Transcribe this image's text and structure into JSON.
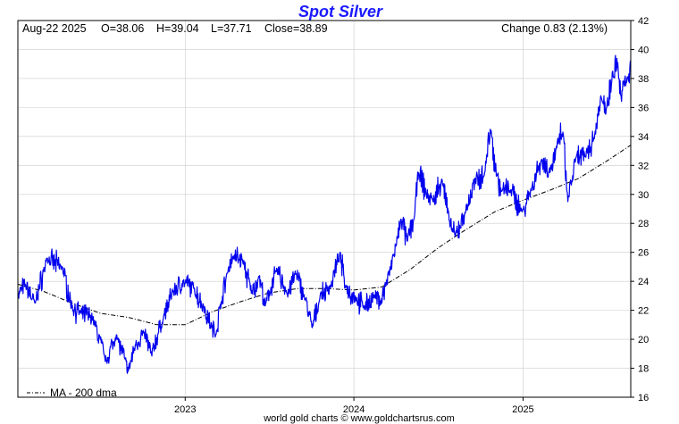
{
  "chart_data": {
    "type": "line",
    "title": "Spot Silver",
    "header": {
      "date": "Aug-22  2025",
      "open": "O=38.06",
      "high": "H=39.04",
      "low": "L=37.71",
      "close": "Close=38.89",
      "change": "Change 0.83 (2.13%)"
    },
    "ylim": [
      16,
      42
    ],
    "y_ticks": [
      "16",
      "18",
      "20",
      "22",
      "24",
      "26",
      "28",
      "30",
      "32",
      "34",
      "36",
      "38",
      "40",
      "42"
    ],
    "x_ticks": [
      {
        "label": "2023",
        "date": "2023-01-01"
      },
      {
        "label": "2024",
        "date": "2024-01-01"
      },
      {
        "label": "2025",
        "date": "2025-01-01"
      }
    ],
    "x_range": [
      "2022-01-04",
      "2025-08-22"
    ],
    "grid": true,
    "legend_text": "MA - 200 dma",
    "legend_position": "bottom-left",
    "footer": "world gold charts © www.goldchartsrus.com",
    "colors": {
      "price": "#0000ee",
      "ma": "#000000",
      "title": "#1a1aff",
      "grid": "#cccccc"
    },
    "series": [
      {
        "name": "Spot Silver",
        "style": "solid",
        "x": [
          "2022-01-04",
          "2022-01-20",
          "2022-02-10",
          "2022-03-08",
          "2022-04-10",
          "2022-05-01",
          "2022-05-20",
          "2022-06-15",
          "2022-07-14",
          "2022-08-05",
          "2022-08-31",
          "2022-09-15",
          "2022-10-04",
          "2022-10-20",
          "2022-11-15",
          "2022-12-05",
          "2022-12-28",
          "2023-01-20",
          "2023-02-10",
          "2023-02-28",
          "2023-03-08",
          "2023-03-20",
          "2023-04-05",
          "2023-04-14",
          "2023-05-05",
          "2023-05-25",
          "2023-06-10",
          "2023-06-23",
          "2023-07-18",
          "2023-08-10",
          "2023-08-28",
          "2023-09-15",
          "2023-10-03",
          "2023-10-20",
          "2023-11-10",
          "2023-12-01",
          "2023-12-15",
          "2024-01-05",
          "2024-01-22",
          "2024-02-15",
          "2024-02-28",
          "2024-03-20",
          "2024-04-05",
          "2024-04-12",
          "2024-04-25",
          "2024-05-10",
          "2024-05-20",
          "2024-06-05",
          "2024-06-20",
          "2024-07-10",
          "2024-07-25",
          "2024-08-07",
          "2024-08-30",
          "2024-09-20",
          "2024-10-10",
          "2024-10-22",
          "2024-11-05",
          "2024-11-15",
          "2024-12-05",
          "2024-12-30",
          "2025-01-20",
          "2025-02-10",
          "2025-02-28",
          "2025-03-15",
          "2025-03-28",
          "2025-04-08",
          "2025-04-25",
          "2025-05-15",
          "2025-06-05",
          "2025-06-17",
          "2025-07-01",
          "2025-07-14",
          "2025-07-25",
          "2025-08-01",
          "2025-08-15",
          "2025-08-22"
        ],
        "values": [
          23.0,
          23.8,
          22.5,
          25.5,
          25.0,
          22.2,
          21.8,
          21.5,
          18.5,
          20.3,
          17.8,
          19.6,
          20.5,
          19.0,
          21.5,
          23.3,
          23.9,
          23.5,
          22.2,
          20.8,
          20.3,
          22.6,
          25.0,
          25.7,
          25.5,
          23.2,
          24.3,
          22.3,
          24.9,
          23.1,
          24.5,
          23.1,
          20.8,
          23.0,
          23.5,
          25.8,
          23.6,
          22.8,
          22.3,
          22.9,
          22.6,
          24.8,
          27.0,
          28.3,
          26.8,
          28.3,
          31.5,
          30.1,
          29.5,
          31.0,
          28.2,
          27.1,
          28.8,
          31.0,
          31.5,
          34.5,
          31.4,
          30.2,
          30.3,
          28.8,
          30.5,
          32.4,
          31.5,
          33.2,
          34.3,
          29.5,
          32.5,
          32.6,
          34.1,
          36.5,
          36.0,
          38.5,
          39.1,
          36.8,
          38.0,
          38.89
        ]
      },
      {
        "name": "MA - 200 dma",
        "style": "dashdot",
        "x": [
          "2022-01-04",
          "2022-03-01",
          "2022-05-01",
          "2022-07-01",
          "2022-09-01",
          "2022-11-01",
          "2023-01-01",
          "2023-03-01",
          "2023-05-01",
          "2023-07-01",
          "2023-09-01",
          "2023-11-01",
          "2024-01-01",
          "2024-03-01",
          "2024-05-01",
          "2024-07-01",
          "2024-09-01",
          "2024-11-01",
          "2025-01-01",
          "2025-03-01",
          "2025-05-01",
          "2025-07-01",
          "2025-08-22"
        ],
        "values": [
          23.8,
          23.3,
          22.5,
          21.8,
          21.5,
          21.0,
          21.0,
          21.9,
          22.6,
          23.2,
          23.5,
          23.5,
          23.4,
          23.6,
          24.8,
          26.3,
          27.6,
          28.8,
          29.6,
          30.3,
          31.1,
          32.3,
          33.4
        ]
      }
    ]
  }
}
